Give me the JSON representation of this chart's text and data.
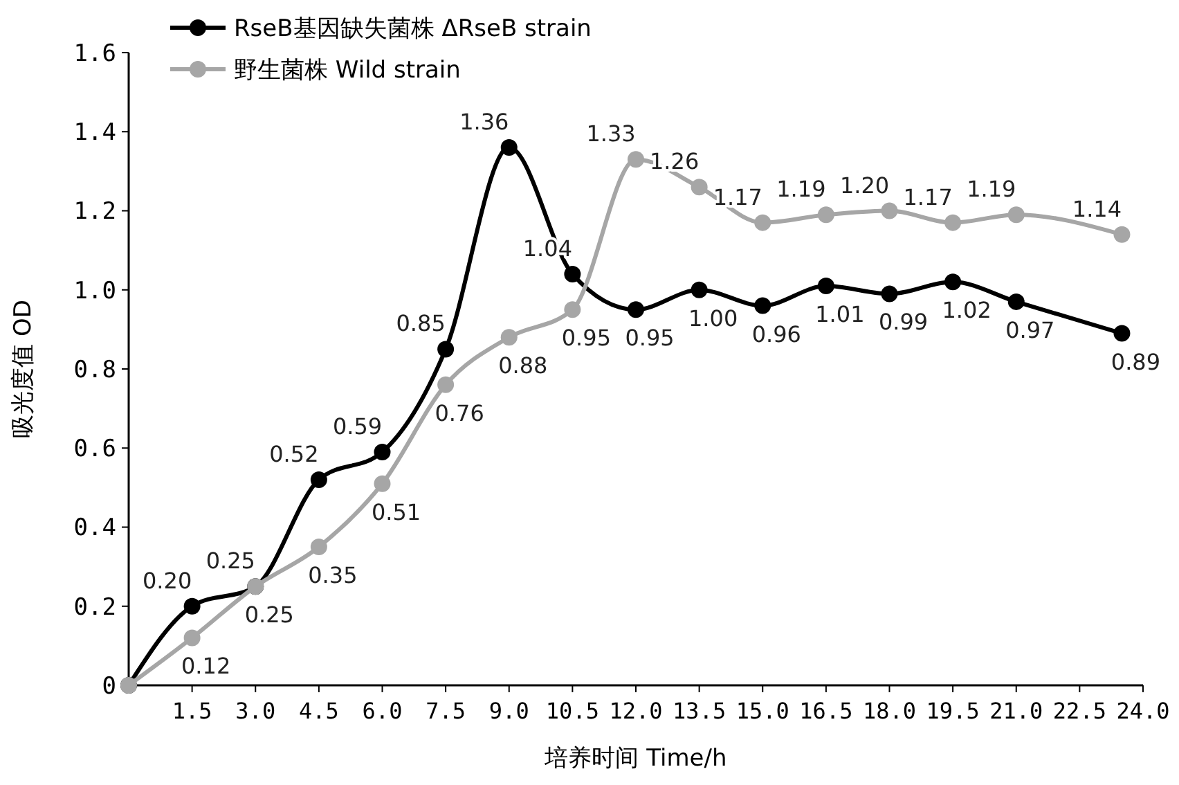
{
  "chart_data": {
    "type": "line",
    "xlabel": "培养时间 Time/h",
    "ylabel": "吸光度值 OD",
    "x": [
      0,
      1.5,
      3,
      4.5,
      6,
      7.5,
      9,
      10.5,
      12,
      13.5,
      15,
      16.5,
      18,
      19.5,
      21,
      23.5
    ],
    "series": [
      {
        "name": "RseB基因缺失菌株 ΔRseB strain",
        "color": "#000000",
        "values": [
          0,
          0.2,
          0.25,
          0.52,
          0.59,
          0.85,
          1.36,
          1.04,
          0.95,
          1.0,
          0.96,
          1.01,
          0.99,
          1.02,
          0.97,
          0.89
        ],
        "value_labels": [
          null,
          "0.20",
          "0.25",
          "0.52",
          "0.59",
          "0.85",
          "1.36",
          "1.04",
          "0.95",
          "1.00",
          "0.96",
          "1.01",
          "0.99",
          "1.02",
          "0.97",
          "0.89"
        ]
      },
      {
        "name": "野生菌株 Wild strain",
        "color": "#a6a6a6",
        "values": [
          0,
          0.12,
          0.25,
          0.35,
          0.51,
          0.76,
          0.88,
          0.95,
          1.33,
          1.26,
          1.17,
          1.19,
          1.2,
          1.17,
          1.19,
          1.14
        ],
        "value_labels": [
          null,
          "0.12",
          "0.25",
          "0.35",
          "0.51",
          "0.76",
          "0.88",
          "0.95",
          "1.33",
          "1.26",
          "1.17",
          "1.19",
          "1.20",
          "1.17",
          "1.19",
          "1.14"
        ]
      }
    ],
    "xlim": [
      0,
      24
    ],
    "xticks": [
      1.5,
      {
        "value": 3,
        "label": "3.0"
      },
      4.5,
      {
        "value": 6,
        "label": "6.0"
      },
      7.5,
      {
        "value": 9,
        "label": "9.0"
      },
      10.5,
      {
        "value": 12,
        "label": "12.0"
      },
      13.5,
      {
        "value": 15,
        "label": "15.0"
      },
      16.5,
      {
        "value": 18,
        "label": "18.0"
      },
      19.5,
      {
        "value": 21,
        "label": "21.0"
      },
      22.5,
      {
        "value": 24,
        "label": "24.0"
      }
    ],
    "ylim": [
      0,
      1.6
    ],
    "yticks": [
      0,
      0.2,
      0.4,
      0.6,
      0.8,
      {
        "value": 1,
        "label": "1.0"
      },
      1.2,
      1.4,
      1.6
    ],
    "grid": false,
    "legend": "top left",
    "marker": "circle",
    "line_style": "solid"
  }
}
